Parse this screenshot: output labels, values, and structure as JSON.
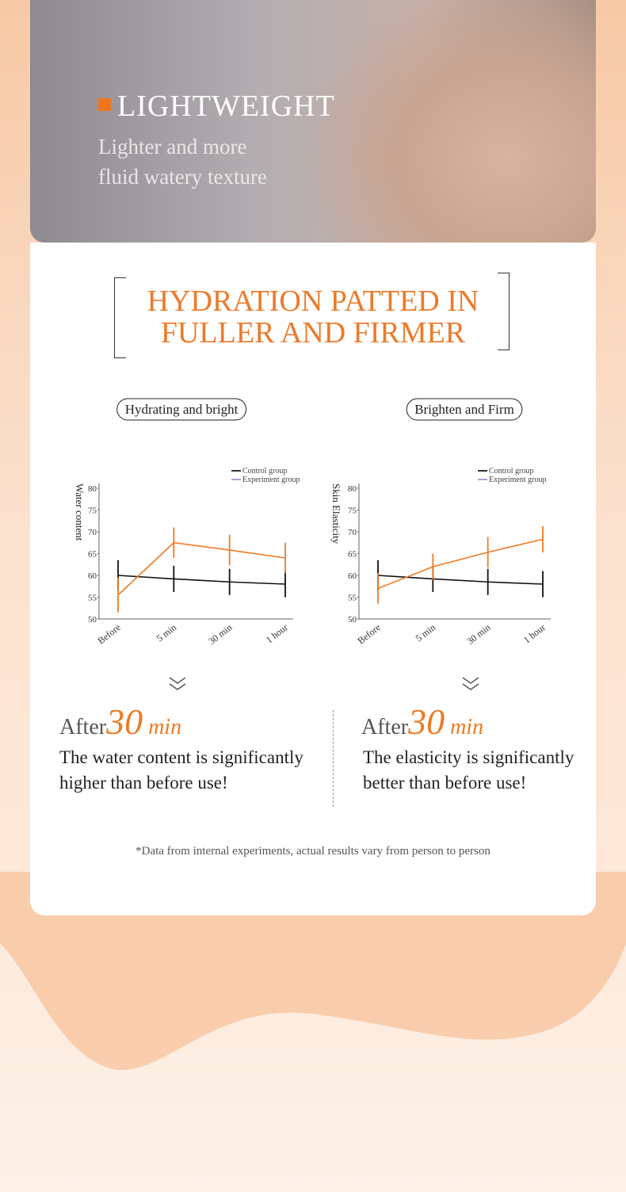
{
  "hero": {
    "title": "LIGHTWEIGHT",
    "lines": [
      "Lighter and more",
      "fluid watery texture"
    ]
  },
  "section": {
    "title_lines": [
      "HYDRATION PATTED IN",
      "FULLER AND FIRMER"
    ]
  },
  "chart_data": [
    {
      "type": "line",
      "title": "Hydrating and bright",
      "y_label": "Water content",
      "categories": [
        "Before",
        "5 min",
        "30 min",
        "1 hour"
      ],
      "ylim": [
        50,
        80
      ],
      "yticks": [
        50,
        55,
        60,
        65,
        70,
        75,
        80
      ],
      "series": [
        {
          "name": "Control group",
          "color": "#111111",
          "legend_color": "#333333",
          "values": [
            60,
            59.2,
            58.5,
            58
          ],
          "errors": [
            3.5,
            3,
            3,
            3
          ]
        },
        {
          "name": "Experiment group",
          "color": "#f07b22",
          "legend_color": "#b79ad6",
          "values": [
            55.5,
            67.5,
            65.8,
            64
          ],
          "errors": [
            4,
            3.5,
            3.5,
            3.5
          ]
        }
      ]
    },
    {
      "type": "line",
      "title": "Brighten and Firm",
      "y_label": "Skin Elasticity",
      "categories": [
        "Before",
        "5 min",
        "30 min",
        "1 hour"
      ],
      "ylim": [
        50,
        80
      ],
      "yticks": [
        50,
        55,
        60,
        65,
        70,
        75,
        80
      ],
      "series": [
        {
          "name": "Control group",
          "color": "#111111",
          "legend_color": "#333333",
          "values": [
            60,
            59.2,
            58.5,
            58
          ],
          "errors": [
            3.5,
            3,
            3,
            3
          ]
        },
        {
          "name": "Experiment group",
          "color": "#f07b22",
          "legend_color": "#b79ad6",
          "values": [
            57,
            62,
            65.3,
            68.3
          ],
          "errors": [
            3.5,
            3,
            3.5,
            3
          ]
        }
      ]
    }
  ],
  "results": [
    {
      "prefix": "After",
      "number": "30",
      "unit": "min",
      "lines": [
        "The water content is significantly",
        "higher than before use!"
      ]
    },
    {
      "prefix": "After",
      "number": "30",
      "unit": "min",
      "lines": [
        "The elasticity is significantly",
        "better than before use!"
      ]
    }
  ],
  "footnote": "*Data from internal experiments, actual results vary from person to person"
}
